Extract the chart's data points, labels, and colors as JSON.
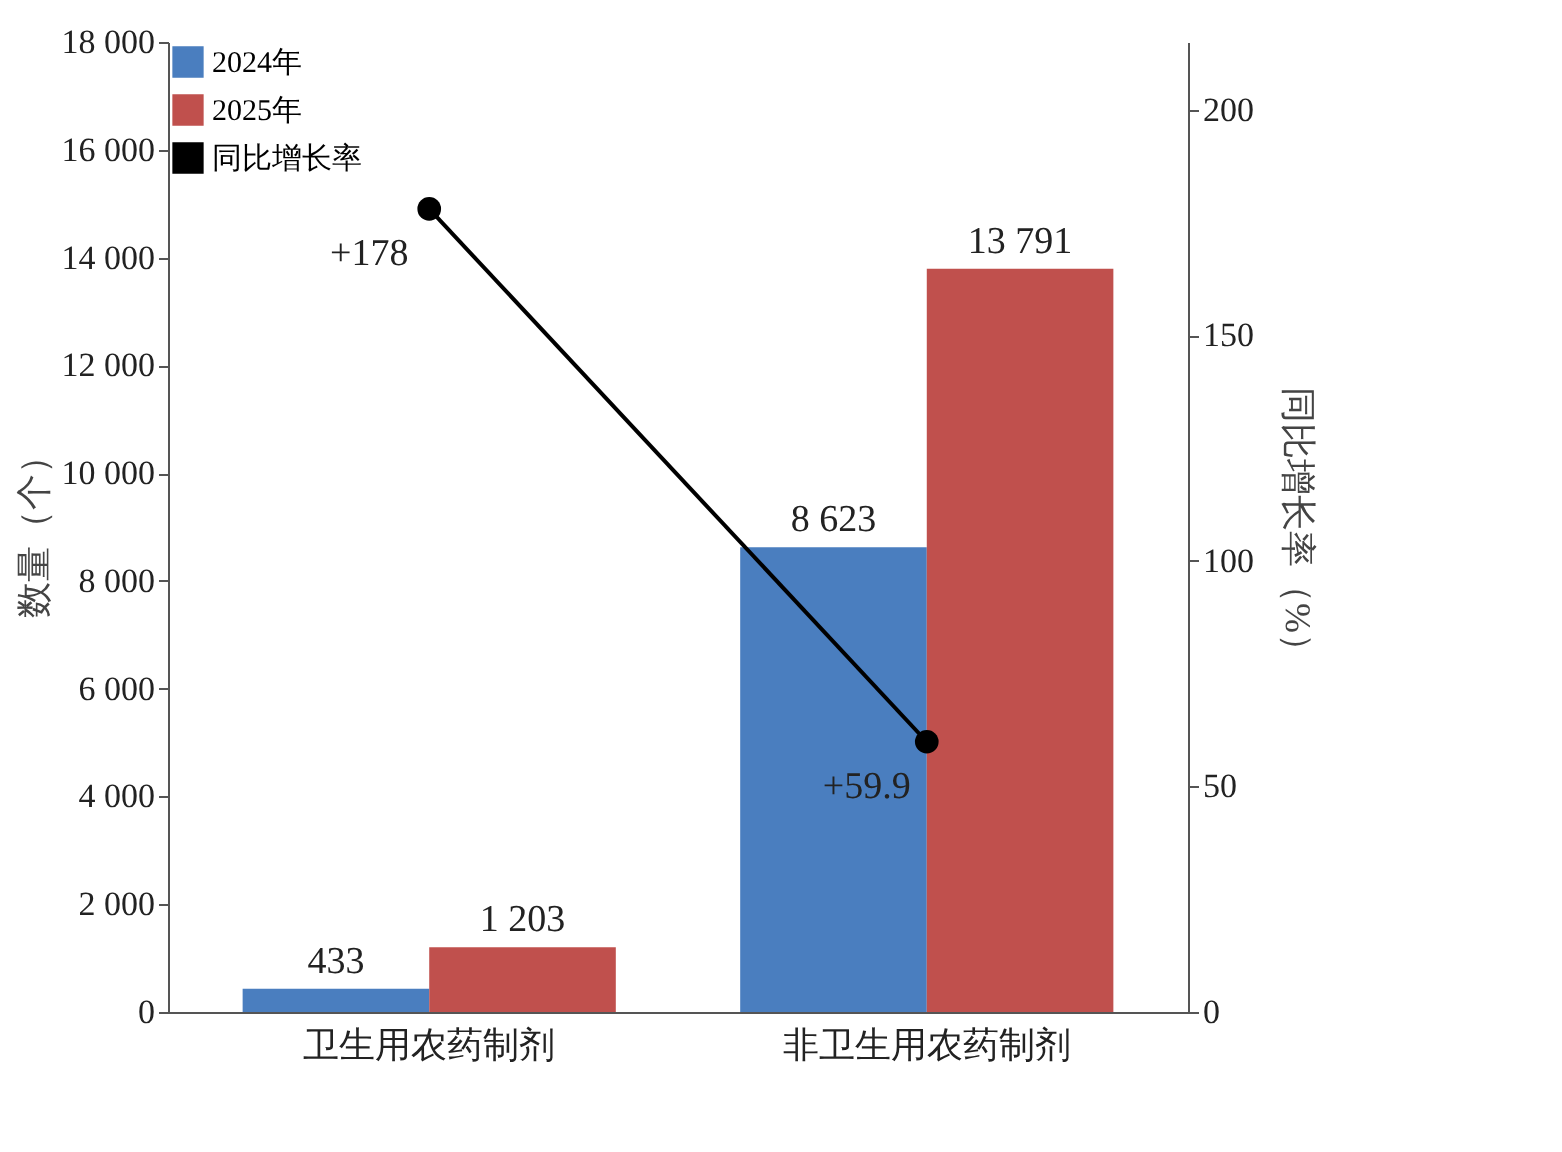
{
  "chart_data": {
    "type": "bar",
    "categories": [
      "卫生用农药制剂",
      "非卫生用农药制剂"
    ],
    "ylabel": "数量（个）",
    "y2label": "同比增长率（%）",
    "series": [
      {
        "name": "2024年",
        "color": "#4a7ebf",
        "values": [
          433,
          8623
        ],
        "value_labels": [
          "433",
          "8 623"
        ]
      },
      {
        "name": "2025年",
        "color": "#c0504d",
        "values": [
          1203,
          13791
        ],
        "value_labels": [
          "1 203",
          "13 791"
        ]
      },
      {
        "name": "同比增长率",
        "type": "line",
        "axis": "y2",
        "color": "#000000",
        "marker": "circle",
        "values": [
          178,
          59.9
        ],
        "value_labels": [
          "+178",
          "+59.9"
        ]
      }
    ],
    "ylim": [
      0,
      18000
    ],
    "yticks": [
      0,
      {
        "value": 2000,
        "label": "2 000"
      },
      {
        "value": 4000,
        "label": "4 000"
      },
      {
        "value": 6000,
        "label": "6 000"
      },
      {
        "value": 8000,
        "label": "8 000"
      },
      {
        "value": 10000,
        "label": "10 000"
      },
      {
        "value": 12000,
        "label": "12 000"
      },
      {
        "value": 14000,
        "label": "14 000"
      },
      {
        "value": 16000,
        "label": "16 000"
      },
      {
        "value": 18000,
        "label": "18 000"
      }
    ],
    "y2lim": [
      0,
      215
    ],
    "y2ticks": [
      0,
      50,
      100,
      150,
      200
    ],
    "legend": "top left",
    "grid": false
  }
}
